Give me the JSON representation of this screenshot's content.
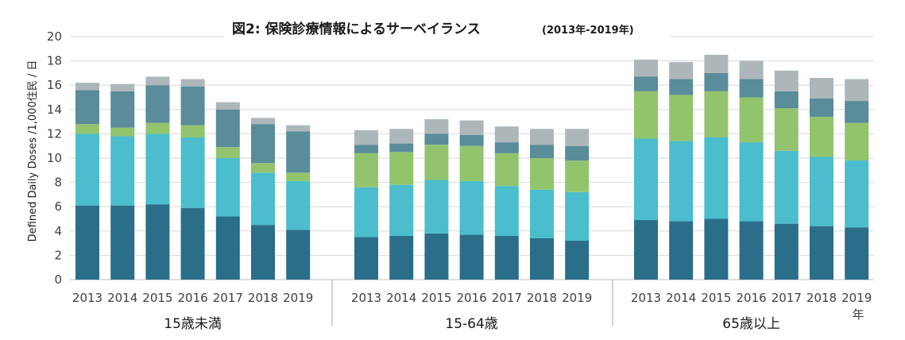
{
  "chart_data": {
    "type": "bar",
    "stacked": true,
    "title": "図2: 保険診療情報によるサーベイランス",
    "subtitle": "(2013年-2019年)",
    "ylabel": "Defined Daily Doses /1,000住民 / 日",
    "xlabel_unit": "年",
    "ylim": [
      0,
      20
    ],
    "yticks": [
      0,
      2,
      4,
      6,
      8,
      10,
      12,
      14,
      16,
      18,
      20
    ],
    "grid": true,
    "categories": [
      "2013",
      "2014",
      "2015",
      "2016",
      "2017",
      "2018",
      "2019"
    ],
    "series_colors": [
      "#2b6e8a",
      "#4bbdcc",
      "#92c46e",
      "#5a8c9a",
      "#adb7b9"
    ],
    "groups": [
      {
        "label": "15歳未満",
        "series": [
          {
            "values": [
              6.1,
              6.1,
              6.2,
              5.9,
              5.2,
              4.5,
              4.1
            ]
          },
          {
            "values": [
              5.9,
              5.7,
              5.8,
              5.8,
              4.8,
              4.3,
              4.0
            ]
          },
          {
            "values": [
              0.8,
              0.7,
              0.9,
              1.0,
              0.9,
              0.8,
              0.7
            ]
          },
          {
            "values": [
              2.8,
              3.0,
              3.1,
              3.2,
              3.1,
              3.2,
              3.4
            ]
          },
          {
            "values": [
              0.6,
              0.6,
              0.7,
              0.6,
              0.6,
              0.5,
              0.5
            ]
          }
        ]
      },
      {
        "label": "15-64歳",
        "series": [
          {
            "values": [
              3.5,
              3.6,
              3.8,
              3.7,
              3.6,
              3.4,
              3.2
            ]
          },
          {
            "values": [
              4.1,
              4.2,
              4.4,
              4.4,
              4.1,
              4.0,
              4.0
            ]
          },
          {
            "values": [
              2.8,
              2.7,
              2.9,
              2.9,
              2.7,
              2.6,
              2.6
            ]
          },
          {
            "values": [
              0.7,
              0.7,
              0.9,
              0.9,
              0.9,
              1.1,
              1.2
            ]
          },
          {
            "values": [
              1.2,
              1.2,
              1.2,
              1.2,
              1.3,
              1.3,
              1.4
            ]
          }
        ]
      },
      {
        "label": "65歳以上",
        "series": [
          {
            "values": [
              4.9,
              4.8,
              5.0,
              4.8,
              4.6,
              4.4,
              4.3
            ]
          },
          {
            "values": [
              6.7,
              6.6,
              6.7,
              6.5,
              6.0,
              5.7,
              5.5
            ]
          },
          {
            "values": [
              3.9,
              3.8,
              3.8,
              3.7,
              3.5,
              3.3,
              3.1
            ]
          },
          {
            "values": [
              1.2,
              1.3,
              1.5,
              1.5,
              1.4,
              1.5,
              1.8
            ]
          },
          {
            "values": [
              1.4,
              1.4,
              1.5,
              1.5,
              1.7,
              1.7,
              1.8
            ]
          }
        ]
      }
    ]
  }
}
